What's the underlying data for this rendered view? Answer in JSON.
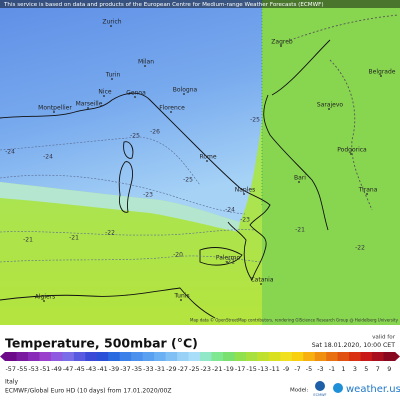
{
  "banner": "This service is based on data and products of the European Centre for Medium-range Weather Forecasts (ECMWF)",
  "map": {
    "cities": [
      "Zurich",
      "Turin",
      "Milan",
      "Genoa",
      "Bologna",
      "Florence",
      "Montpellier",
      "Marseille",
      "Nice",
      "Zagreb",
      "Sarajevo",
      "Belgrade",
      "Rome",
      "Naples",
      "Bari",
      "Podgorica",
      "Tirana",
      "Palermo",
      "Catania",
      "Algiers",
      "Tunis"
    ],
    "contour_labels": [
      -26,
      -25,
      -25,
      -24,
      -24,
      -24,
      -25,
      -23,
      -23,
      -22,
      -21,
      -21,
      -21,
      -20,
      -21,
      -22
    ],
    "attribution": "Map data © OpenStreetMap contributors, rendering GIScience Research Group @ Heidelberg University"
  },
  "legend": {
    "title": "Temperature, 500mbar (°C)",
    "valid_label": "valid for",
    "valid_time": "Sat 18.01.2020, 10:00 CET",
    "ticks": [
      -57,
      -55,
      -53,
      -51,
      -49,
      -47,
      -45,
      -43,
      -41,
      -39,
      -37,
      -35,
      -33,
      -31,
      -29,
      -27,
      -25,
      -23,
      -21,
      -19,
      -17,
      -15,
      -13,
      -11,
      -9,
      -7,
      -5,
      -3,
      -1,
      1,
      3,
      5,
      7,
      9
    ],
    "colors": [
      "#6d0a8a",
      "#7a1aa0",
      "#8a2ab8",
      "#9a40cc",
      "#8f5ae0",
      "#7a6ee8",
      "#5a5ae0",
      "#3c4ad8",
      "#2a50d8",
      "#2a6ae0",
      "#3a80e8",
      "#4a90ec",
      "#5aa0f0",
      "#6ab0f2",
      "#80c0f4",
      "#98d0f6",
      "#a8def8",
      "#90e8c8",
      "#80e890",
      "#7ae070",
      "#90e050",
      "#a8e040",
      "#c0e030",
      "#d8e020",
      "#f0e020",
      "#f8d010",
      "#f8b010",
      "#f09010",
      "#e87010",
      "#e05010",
      "#d83010",
      "#c81818",
      "#a81020",
      "#880820"
    ]
  },
  "footer": {
    "region": "Italy",
    "model_run": "ECMWF/Global Euro HD (10 days) from 17.01.2020/00Z",
    "model_label": "Model:",
    "model_name": "ECMWF",
    "brand": "weather.us"
  }
}
